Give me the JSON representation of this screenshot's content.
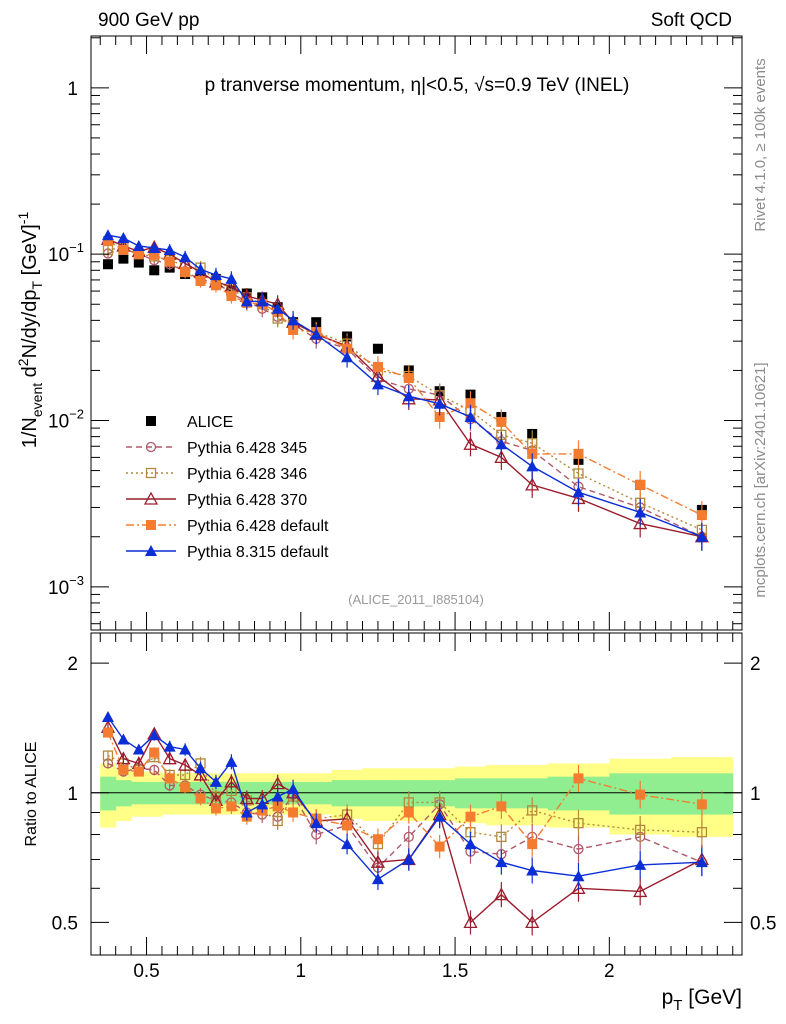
{
  "header": {
    "energy_label": "900 GeV pp",
    "category_label": "Soft QCD",
    "title_prefix": "p tranverse momentum, ",
    "title_eta": "η|<0.5, ",
    "title_sqrt": "√s",
    "title_suffix": "=0.9 TeV (INEL)",
    "analysis_id": "(ALICE_2011_I885104)",
    "side_rivet": "Rivet 4.1.0, ≥ 100k events",
    "side_mcplots": "mcplots.cern.ch [arXiv:2401.10621]"
  },
  "axes": {
    "ylabel_main": "1/N",
    "ylabel_main_sub": "event",
    "ylabel_main_rest": " d",
    "ylabel_main_sup": "2",
    "ylabel_main_tail": "N/dy/dp",
    "ylabel_main_sub2": "T",
    "ylabel_main_unit": " [GeV]",
    "ylabel_main_unit_sup": "-1",
    "ylabel_ratio": "Ratio to ALICE",
    "xlabel": "p",
    "xlabel_sub": "T",
    "xlabel_unit": " [GeV]"
  },
  "chart_data": [
    {
      "type": "scatter",
      "title": "p tranverse momentum, |η|<0.5, √s=0.9 TeV (INEL)",
      "xlabel": "p_T [GeV]",
      "ylabel": "1/N_event d2N/dy/dp_T [GeV]^-1",
      "yscale": "log",
      "xlim": [
        0.32,
        2.43
      ],
      "ylim": [
        0.00055,
        2.05
      ],
      "y_ticks": [
        {
          "value": 0.001,
          "label": "10",
          "exp": "−3"
        },
        {
          "value": 0.01,
          "label": "10",
          "exp": "−2"
        },
        {
          "value": 0.1,
          "label": "10",
          "exp": "−1"
        },
        {
          "value": 1,
          "label": "1",
          "exp": ""
        }
      ],
      "x_ticks": [
        {
          "value": 0.5,
          "label": "0.5"
        },
        {
          "value": 1,
          "label": "1"
        },
        {
          "value": 1.5,
          "label": "1.5"
        },
        {
          "value": 2,
          "label": "2"
        }
      ],
      "x": [
        0.375,
        0.425,
        0.475,
        0.525,
        0.575,
        0.625,
        0.675,
        0.725,
        0.775,
        0.825,
        0.875,
        0.925,
        0.975,
        1.05,
        1.15,
        1.25,
        1.35,
        1.45,
        1.55,
        1.65,
        1.75,
        1.9,
        2.1,
        2.3
      ],
      "series": [
        {
          "name": "ALICE",
          "color": "#000000",
          "marker": "square-filled",
          "line": "none",
          "values": [
            0.087,
            0.094,
            0.089,
            0.08,
            0.083,
            0.076,
            0.071,
            0.071,
            0.06,
            0.058,
            0.055,
            0.048,
            0.039,
            0.039,
            0.032,
            0.027,
            0.02,
            0.015,
            0.0143,
            0.0105,
            0.0083,
            0.0058,
            0.0041,
            0.0029
          ]
        },
        {
          "name": "Pythia 6.428 345",
          "color": "#b05a6a",
          "marker": "circle-open",
          "line": "dashed",
          "values": [
            0.101,
            0.108,
            0.1,
            0.092,
            0.087,
            0.079,
            0.07,
            0.068,
            0.058,
            0.052,
            0.047,
            0.042,
            0.038,
            0.031,
            0.027,
            0.0178,
            0.0155,
            0.0142,
            0.0102,
            0.0075,
            0.0066,
            0.004,
            0.003,
            0.002
          ]
        },
        {
          "name": "Pythia 6.428 346",
          "color": "#b48a3a",
          "marker": "square-open",
          "line": "dotted",
          "values": [
            0.106,
            0.11,
            0.1,
            0.097,
            0.092,
            0.085,
            0.083,
            0.07,
            0.061,
            0.055,
            0.05,
            0.041,
            0.038,
            0.034,
            0.029,
            0.02,
            0.0185,
            0.0142,
            0.0115,
            0.0082,
            0.0073,
            0.0048,
            0.0032,
            0.0022
          ]
        },
        {
          "name": "Pythia 6.428 370",
          "color": "#9b1c2c",
          "marker": "triangle-open",
          "line": "solid",
          "values": [
            0.123,
            0.112,
            0.104,
            0.11,
            0.1,
            0.088,
            0.078,
            0.068,
            0.064,
            0.056,
            0.053,
            0.05,
            0.039,
            0.033,
            0.028,
            0.0185,
            0.0135,
            0.0133,
            0.0072,
            0.006,
            0.0041,
            0.0034,
            0.0024,
            0.002
          ]
        },
        {
          "name": "Pythia 6.428 default",
          "color": "#f47c30",
          "marker": "square-filled",
          "line": "dashdot",
          "values": [
            0.12,
            0.106,
            0.1,
            0.099,
            0.09,
            0.078,
            0.069,
            0.065,
            0.056,
            0.051,
            0.05,
            0.045,
            0.035,
            0.034,
            0.027,
            0.021,
            0.018,
            0.0105,
            0.0127,
            0.0098,
            0.0063,
            0.0063,
            0.0041,
            0.0027
          ]
        },
        {
          "name": "Pythia 8.315 default",
          "color": "#0b2ed6",
          "marker": "triangle-filled",
          "line": "solid",
          "values": [
            0.13,
            0.125,
            0.112,
            0.109,
            0.106,
            0.096,
            0.081,
            0.075,
            0.071,
            0.052,
            0.052,
            0.047,
            0.04,
            0.033,
            0.024,
            0.0165,
            0.014,
            0.0126,
            0.0105,
            0.0072,
            0.0053,
            0.0037,
            0.0028,
            0.002
          ]
        }
      ]
    },
    {
      "type": "scatter",
      "title": "Ratio to ALICE",
      "xlabel": "p_T [GeV]",
      "ylabel": "Ratio to ALICE",
      "xlim": [
        0.32,
        2.43
      ],
      "ylim": [
        0.42,
        2.35
      ],
      "y_ticks": [
        {
          "value": 0.5,
          "label": "0.5"
        },
        {
          "value": 1,
          "label": "1"
        },
        {
          "value": 2,
          "label": "2"
        }
      ],
      "x_ticks": [
        {
          "value": 0.5,
          "label": "0.5"
        },
        {
          "value": 1,
          "label": "1"
        },
        {
          "value": 1.5,
          "label": "1.5"
        },
        {
          "value": 2,
          "label": "2"
        }
      ],
      "bands": [
        {
          "name": "1-sigma",
          "color": "#90ee90",
          "x_edges": [
            0.35,
            0.4,
            0.45,
            0.5,
            0.55,
            0.6,
            0.65,
            0.7,
            0.75,
            0.8,
            0.85,
            0.9,
            0.95,
            1.0,
            1.1,
            1.2,
            1.3,
            1.4,
            1.5,
            1.6,
            1.7,
            1.8,
            2.0,
            2.2,
            2.4
          ],
          "lower": [
            0.91,
            0.93,
            0.94,
            0.94,
            0.94,
            0.94,
            0.94,
            0.94,
            0.94,
            0.94,
            0.94,
            0.94,
            0.94,
            0.94,
            0.93,
            0.93,
            0.93,
            0.93,
            0.92,
            0.92,
            0.92,
            0.91,
            0.89,
            0.89,
            0.89
          ],
          "upper": [
            1.09,
            1.07,
            1.06,
            1.06,
            1.06,
            1.06,
            1.06,
            1.06,
            1.06,
            1.06,
            1.06,
            1.06,
            1.06,
            1.06,
            1.07,
            1.07,
            1.07,
            1.07,
            1.08,
            1.08,
            1.08,
            1.09,
            1.11,
            1.11,
            1.11
          ]
        },
        {
          "name": "2-sigma",
          "color": "#ffff88",
          "x_edges": [
            0.35,
            0.4,
            0.45,
            0.5,
            0.55,
            0.6,
            0.65,
            0.7,
            0.75,
            0.8,
            0.85,
            0.9,
            0.95,
            1.0,
            1.1,
            1.2,
            1.3,
            1.4,
            1.5,
            1.6,
            1.7,
            1.8,
            2.0,
            2.2,
            2.4
          ],
          "lower": [
            0.83,
            0.86,
            0.88,
            0.88,
            0.89,
            0.89,
            0.89,
            0.89,
            0.89,
            0.89,
            0.89,
            0.89,
            0.89,
            0.89,
            0.87,
            0.86,
            0.86,
            0.86,
            0.85,
            0.84,
            0.84,
            0.83,
            0.8,
            0.79,
            0.79
          ],
          "upper": [
            1.17,
            1.14,
            1.12,
            1.12,
            1.11,
            1.11,
            1.11,
            1.11,
            1.11,
            1.11,
            1.11,
            1.11,
            1.11,
            1.11,
            1.13,
            1.14,
            1.14,
            1.14,
            1.15,
            1.16,
            1.16,
            1.17,
            1.2,
            1.21,
            1.21
          ]
        }
      ],
      "x": [
        0.375,
        0.425,
        0.475,
        0.525,
        0.575,
        0.625,
        0.675,
        0.725,
        0.775,
        0.825,
        0.875,
        0.925,
        0.975,
        1.05,
        1.15,
        1.25,
        1.35,
        1.45,
        1.55,
        1.65,
        1.75,
        1.9,
        2.1,
        2.3
      ],
      "series": [
        {
          "name": "Pythia 6.428 345",
          "color": "#b05a6a",
          "marker": "circle-open",
          "line": "dashed",
          "values": [
            1.17,
            1.12,
            1.14,
            1.13,
            1.04,
            1.04,
            0.99,
            0.96,
            0.95,
            0.9,
            0.89,
            0.88,
            0.99,
            0.8,
            0.84,
            0.67,
            0.79,
            0.94,
            0.73,
            0.72,
            0.79,
            0.74,
            0.79,
            0.69
          ]
        },
        {
          "name": "Pythia 6.428 346",
          "color": "#b48a3a",
          "marker": "square-open",
          "line": "dotted",
          "values": [
            1.22,
            1.17,
            1.13,
            1.21,
            1.1,
            1.1,
            1.17,
            0.98,
            1.01,
            0.96,
            0.91,
            0.86,
            0.98,
            0.87,
            0.89,
            0.76,
            0.95,
            0.95,
            0.81,
            0.79,
            0.91,
            0.85,
            0.82,
            0.81
          ]
        },
        {
          "name": "Pythia 6.428 370",
          "color": "#9b1c2c",
          "marker": "triangle-open",
          "line": "solid",
          "values": [
            1.42,
            1.2,
            1.17,
            1.37,
            1.2,
            1.16,
            1.1,
            0.96,
            1.06,
            0.97,
            0.97,
            1.05,
            1.0,
            0.86,
            0.87,
            0.69,
            0.7,
            0.89,
            0.5,
            0.58,
            0.5,
            0.6,
            0.59,
            0.7
          ]
        },
        {
          "name": "Pythia 6.428 default",
          "color": "#f47c30",
          "marker": "square-filled",
          "line": "dashdot",
          "values": [
            1.38,
            1.13,
            1.12,
            1.24,
            1.08,
            1.03,
            0.97,
            0.92,
            0.93,
            0.88,
            0.91,
            0.93,
            0.9,
            0.87,
            0.84,
            0.78,
            0.9,
            0.75,
            0.88,
            0.93,
            0.76,
            1.08,
            0.99,
            0.94
          ]
        },
        {
          "name": "Pythia 8.315 default",
          "color": "#0b2ed6",
          "marker": "triangle-filled",
          "line": "solid",
          "values": [
            1.5,
            1.33,
            1.26,
            1.36,
            1.28,
            1.26,
            1.14,
            1.06,
            1.18,
            0.9,
            0.94,
            0.98,
            1.02,
            0.85,
            0.76,
            0.63,
            0.7,
            0.88,
            0.76,
            0.69,
            0.66,
            0.64,
            0.68,
            0.69
          ]
        }
      ]
    }
  ]
}
